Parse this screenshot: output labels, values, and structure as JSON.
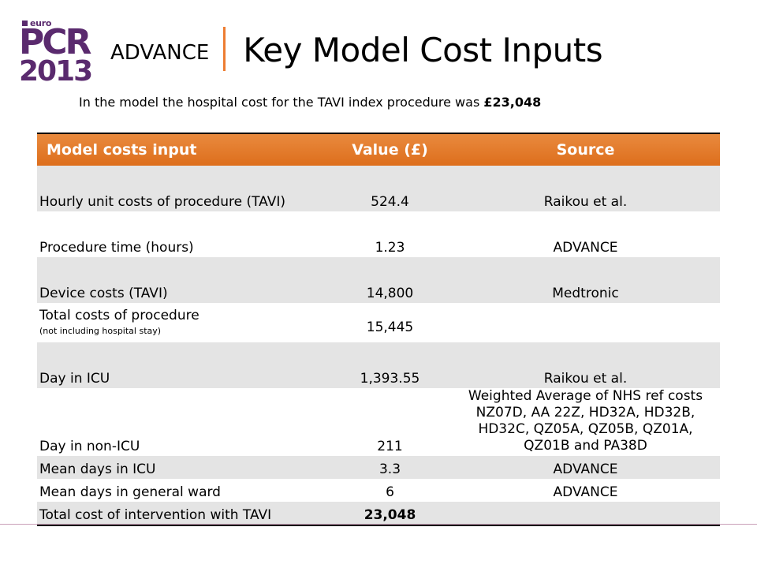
{
  "logo": {
    "euro": "euro",
    "pcr": "PCR",
    "year": "2013"
  },
  "header": {
    "prefix": "ADVANCE",
    "title": "Key Model Cost Inputs"
  },
  "subtitle": {
    "text": "In the model the hospital cost for the TAVI index procedure was ",
    "amount": "£23,048"
  },
  "table": {
    "headers": [
      "Model costs input",
      "Value (£)",
      "Source"
    ],
    "rows": [
      {
        "input": "Hourly unit costs of procedure (TAVI)",
        "value": "524.4",
        "source": "Raikou et al."
      },
      {
        "input": "Procedure time (hours)",
        "value": "1.23",
        "source": "ADVANCE"
      },
      {
        "input": "Device costs (TAVI)",
        "value": "14,800",
        "source": "Medtronic"
      },
      {
        "input": "Total costs of procedure",
        "note": "(not including hospital stay)",
        "value": "15,445",
        "source": ""
      },
      {
        "input": "Day in ICU",
        "value": "1,393.55",
        "source": "Raikou et al."
      },
      {
        "input": "Day in non-ICU",
        "value": "211",
        "source": "Weighted Average of NHS ref costs NZ07D, AA 22Z, HD32A, HD32B, HD32C, QZ05A, QZ05B, QZ01A, QZ01B and PA38D"
      },
      {
        "input": "Mean days in ICU",
        "value": "3.3",
        "source": "ADVANCE"
      },
      {
        "input": "Mean days in general ward",
        "value": "6",
        "source": "ADVANCE"
      },
      {
        "input": "Total cost of intervention with TAVI",
        "value": "23,048",
        "source": ""
      }
    ]
  }
}
